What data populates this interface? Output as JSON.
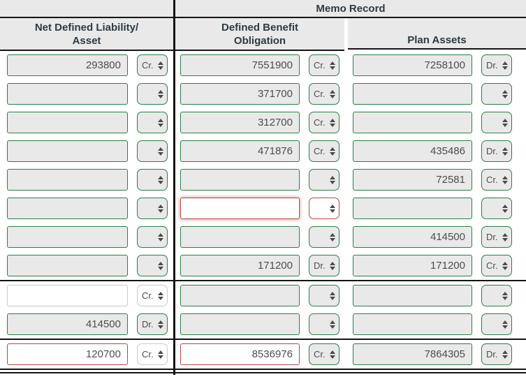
{
  "header": {
    "memo_record": "Memo Record",
    "col1_line1": "Net Defined Liability/",
    "col1_line2": "Asset",
    "col2_line1": "Defined Benefit",
    "col2_line2": "Obligation",
    "col3": "Plan Assets"
  },
  "select_options": [
    "Cr.",
    "Dr."
  ],
  "colors": {
    "green": "#2b7e46",
    "red": "#b24945",
    "gray_border": "#c9c9c9",
    "input_bg": "#e9e9e9",
    "header_bg": "#e9e9e9",
    "header_text": "#2d3b45",
    "text": "#4d4d4d",
    "line": "#141414"
  },
  "rows": [
    {
      "cells": [
        {
          "value": "293800",
          "dir": "Cr.",
          "input": "green",
          "select": "green"
        },
        {
          "value": "7551900",
          "dir": "Cr.",
          "input": "green",
          "select": "green"
        },
        {
          "value": "7258100",
          "dir": "Dr.",
          "input": "green",
          "select": "green"
        }
      ]
    },
    {
      "cells": [
        {
          "value": "",
          "dir": "",
          "input": "green",
          "select": "green"
        },
        {
          "value": "371700",
          "dir": "Cr.",
          "input": "green",
          "select": "green"
        },
        {
          "value": "",
          "dir": "",
          "input": "green",
          "select": "green"
        }
      ]
    },
    {
      "cells": [
        {
          "value": "",
          "dir": "",
          "input": "green",
          "select": "green"
        },
        {
          "value": "312700",
          "dir": "Cr.",
          "input": "green",
          "select": "green"
        },
        {
          "value": "",
          "dir": "",
          "input": "green",
          "select": "green"
        }
      ]
    },
    {
      "cells": [
        {
          "value": "",
          "dir": "",
          "input": "green",
          "select": "green"
        },
        {
          "value": "471876",
          "dir": "Cr.",
          "input": "green",
          "select": "green"
        },
        {
          "value": "435486",
          "dir": "Dr.",
          "input": "green",
          "select": "green"
        }
      ]
    },
    {
      "cells": [
        {
          "value": "",
          "dir": "",
          "input": "green",
          "select": "green"
        },
        {
          "value": "",
          "dir": "",
          "input": "green",
          "select": "green"
        },
        {
          "value": "72581",
          "dir": "Cr.",
          "input": "green",
          "select": "green"
        }
      ]
    },
    {
      "cells": [
        {
          "value": "",
          "dir": "",
          "input": "green",
          "select": "green"
        },
        {
          "value": "",
          "dir": "",
          "input": "red-glow",
          "select": "red"
        },
        {
          "value": "",
          "dir": "",
          "input": "green",
          "select": "green"
        }
      ]
    },
    {
      "cells": [
        {
          "value": "",
          "dir": "",
          "input": "green",
          "select": "green"
        },
        {
          "value": "",
          "dir": "",
          "input": "green",
          "select": "green"
        },
        {
          "value": "414500",
          "dir": "Dr.",
          "input": "green",
          "select": "green"
        }
      ]
    },
    {
      "cells": [
        {
          "value": "",
          "dir": "",
          "input": "green",
          "select": "green"
        },
        {
          "value": "171200",
          "dir": "Dr.",
          "input": "green",
          "select": "green"
        },
        {
          "value": "171200",
          "dir": "Cr.",
          "input": "green",
          "select": "green"
        }
      ],
      "divider_after": "single"
    },
    {
      "cells": [
        {
          "value": "",
          "dir": "Cr.",
          "input": "white",
          "select": "white"
        },
        {
          "value": "",
          "dir": "",
          "input": "green",
          "select": "green"
        },
        {
          "value": "",
          "dir": "",
          "input": "green",
          "select": "green"
        }
      ]
    },
    {
      "cells": [
        {
          "value": "414500",
          "dir": "Dr.",
          "input": "green",
          "select": "green"
        },
        {
          "value": "",
          "dir": "",
          "input": "green",
          "select": "green"
        },
        {
          "value": "",
          "dir": "",
          "input": "green",
          "select": "green"
        }
      ],
      "divider_after": "single"
    },
    {
      "cells": [
        {
          "value": "120700",
          "dir": "Cr.",
          "input": "red",
          "select": "white"
        },
        {
          "value": "8536976",
          "dir": "Cr.",
          "input": "red",
          "select": "green"
        },
        {
          "value": "7864305",
          "dir": "Dr.",
          "input": "green",
          "select": "green"
        }
      ],
      "divider_after": "double"
    }
  ]
}
